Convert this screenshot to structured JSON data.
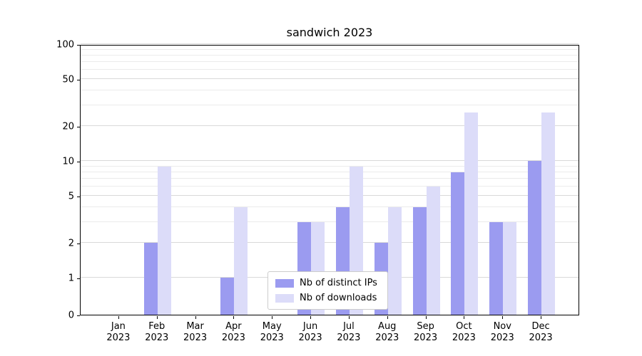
{
  "figure": {
    "background": "#ffffff",
    "axis_color": "#000000",
    "gridline_minor_color": "#ebebeb",
    "gridline_major_color": "#d9d9d9"
  },
  "chart_data": {
    "type": "bar",
    "title": "sandwich 2023",
    "categories": [
      "Jan 2023",
      "Feb 2023",
      "Mar 2023",
      "Apr 2023",
      "May 2023",
      "Jun 2023",
      "Jul 2023",
      "Aug 2023",
      "Sep 2023",
      "Oct 2023",
      "Nov 2023",
      "Dec 2023"
    ],
    "series": [
      {
        "name": "Nb of distinct IPs",
        "color": "#9b9bf0",
        "values": [
          0,
          2,
          0,
          1,
          0,
          3,
          4,
          2,
          4,
          8,
          3,
          10
        ]
      },
      {
        "name": "Nb of downloads",
        "color": "#dcdcf9",
        "values": [
          0,
          9,
          0,
          4,
          0,
          3,
          9,
          4,
          6,
          26,
          3,
          26
        ]
      }
    ],
    "yscale": "symlog",
    "ylim": [
      0,
      100
    ],
    "y_ticks": [
      0,
      1,
      2,
      5,
      10,
      20,
      50,
      100
    ],
    "y_minor_gridlines": [
      3,
      4,
      6,
      7,
      8,
      9,
      30,
      40,
      60,
      70,
      80,
      90
    ],
    "xlabel": "",
    "ylabel": "",
    "grid": true,
    "legend_position": "lower-center-inside"
  }
}
